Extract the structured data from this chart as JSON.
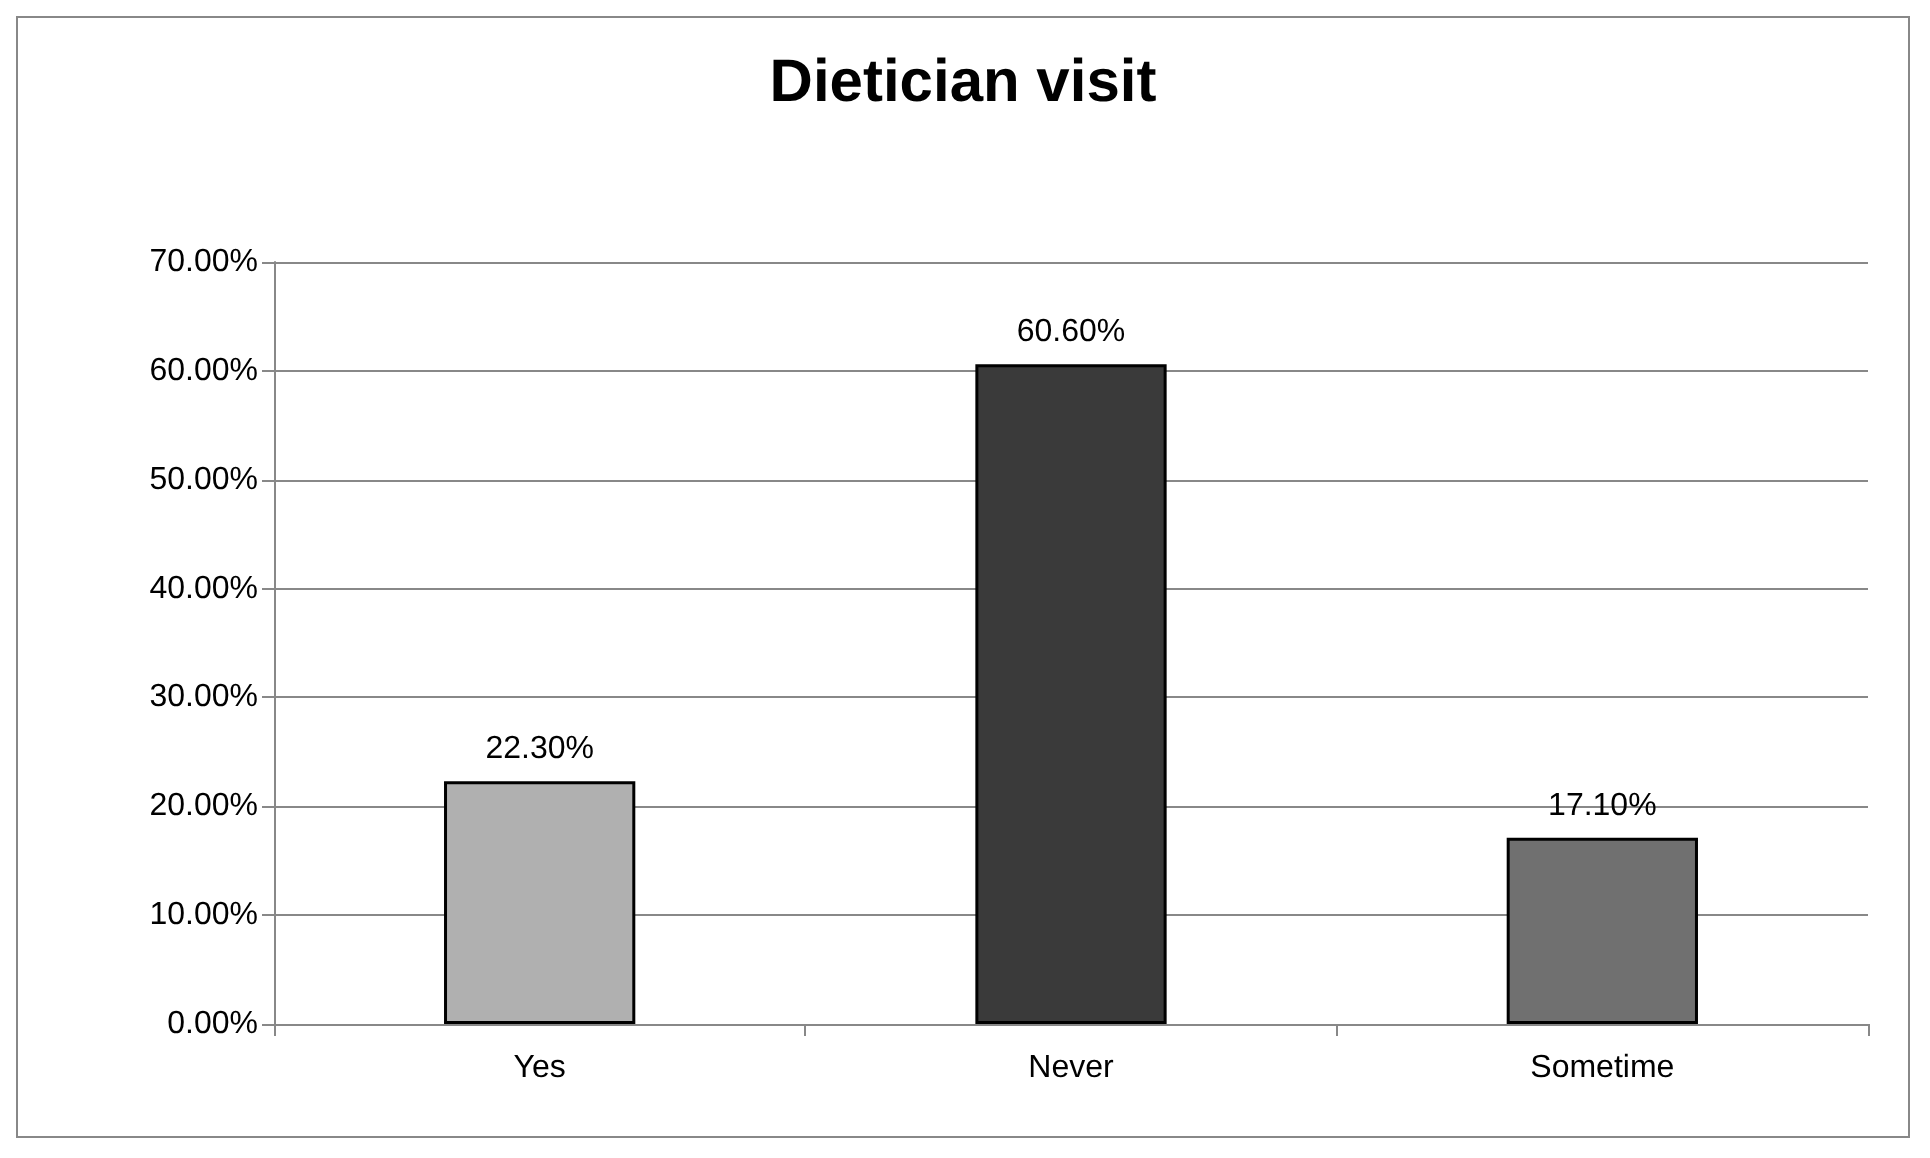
{
  "chart_data": {
    "type": "bar",
    "title": "Dietician visit",
    "categories": [
      "Yes",
      "Never",
      "Sometime"
    ],
    "values": [
      22.3,
      60.6,
      17.1
    ],
    "value_labels": [
      "22.30%",
      "60.60%",
      "17.10%"
    ],
    "colors": [
      "#b0b0b0",
      "#3a3a3a",
      "#707070"
    ],
    "ylim": [
      0,
      70
    ],
    "yticks": [
      {
        "value": 0,
        "label": "0.00%"
      },
      {
        "value": 10,
        "label": "10.00%"
      },
      {
        "value": 20,
        "label": "20.00%"
      },
      {
        "value": 30,
        "label": "30.00%"
      },
      {
        "value": 40,
        "label": "40.00%"
      },
      {
        "value": 50,
        "label": "50.00%"
      },
      {
        "value": 60,
        "label": "60.00%"
      },
      {
        "value": 70,
        "label": "70.00%"
      }
    ],
    "grid": "y"
  }
}
